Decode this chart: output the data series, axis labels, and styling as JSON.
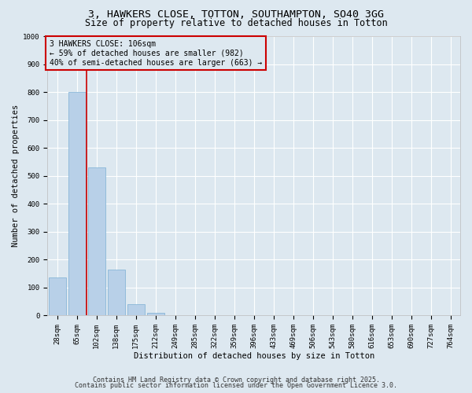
{
  "title": "3, HAWKERS CLOSE, TOTTON, SOUTHAMPTON, SO40 3GG",
  "subtitle": "Size of property relative to detached houses in Totton",
  "xlabel": "Distribution of detached houses by size in Totton",
  "ylabel": "Number of detached properties",
  "categories": [
    "28sqm",
    "65sqm",
    "102sqm",
    "138sqm",
    "175sqm",
    "212sqm",
    "249sqm",
    "285sqm",
    "322sqm",
    "359sqm",
    "396sqm",
    "433sqm",
    "469sqm",
    "506sqm",
    "543sqm",
    "580sqm",
    "616sqm",
    "653sqm",
    "690sqm",
    "727sqm",
    "764sqm"
  ],
  "values": [
    135,
    800,
    530,
    165,
    40,
    10,
    0,
    0,
    0,
    0,
    0,
    0,
    0,
    0,
    0,
    0,
    0,
    0,
    0,
    0,
    0
  ],
  "bar_color": "#b8d0e8",
  "bar_edge_color": "#7aafd4",
  "bg_color": "#dde8f0",
  "grid_color": "#ffffff",
  "vline_color": "#cc0000",
  "vline_x": 2.0,
  "annotation_text": "3 HAWKERS CLOSE: 106sqm\n← 59% of detached houses are smaller (982)\n40% of semi-detached houses are larger (663) →",
  "annotation_box_edgecolor": "#cc0000",
  "annotation_box_facecolor": "#dde8f0",
  "ylim": [
    0,
    1000
  ],
  "yticks": [
    0,
    100,
    200,
    300,
    400,
    500,
    600,
    700,
    800,
    900,
    1000
  ],
  "footer_line1": "Contains HM Land Registry data © Crown copyright and database right 2025.",
  "footer_line2": "Contains public sector information licensed under the Open Government Licence 3.0.",
  "title_fontsize": 9.5,
  "subtitle_fontsize": 8.5,
  "axis_label_fontsize": 7.5,
  "tick_fontsize": 6.5,
  "annotation_fontsize": 7.0,
  "footer_fontsize": 6.0
}
